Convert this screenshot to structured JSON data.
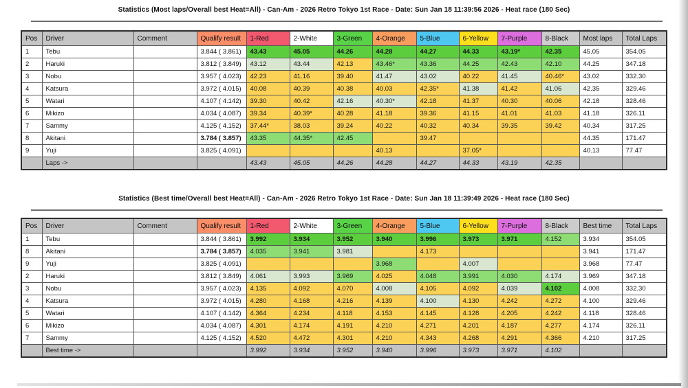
{
  "colors": {
    "header": {
      "gray": "#c5c5c5",
      "qualify": "#f98e69",
      "red": "#f2596e",
      "white": "#ffffff",
      "green": "#58d348",
      "orange": "#f99d5e",
      "blue": "#4fc8f1",
      "yellow": "#fedf1e",
      "purple": "#dd6ede",
      "black": "#cccccc"
    },
    "cell": {
      "g": "#5ccd3d",
      "m": "#8edc74",
      "p": "#d9e7d1",
      "y": "#fbd255",
      "w": "#ffffff"
    },
    "footer_bg": "#c3c3c3"
  },
  "tables": [
    {
      "title": "Statistics (Most laps/Overall best Heat=All) - Can-Am - 2026 Retro Tokyo 1st Race - Date: Sun Jan 18 11:39:56 2026 - Heat race (180 Sec)",
      "columns": [
        "Pos",
        "Driver",
        "Comment",
        "Qualify result",
        "1-Red",
        "2-White",
        "3-Green",
        "4-Orange",
        "5-Blue",
        "6-Yellow",
        "7-Purple",
        "8-Black",
        "Most laps",
        "Total Laps"
      ],
      "header_bg": [
        "gray",
        "gray",
        "gray",
        "qualify",
        "red",
        "white",
        "green",
        "orange",
        "blue",
        "yellow",
        "purple",
        "black",
        "gray",
        "gray"
      ],
      "rows": [
        {
          "pos": "1",
          "driver": "Tebu",
          "comment": "",
          "qualify": "3.844 ( 3.861)",
          "heats": [
            {
              "v": "43.43",
              "c": "g",
              "b": true
            },
            {
              "v": "45.05",
              "c": "g",
              "b": true
            },
            {
              "v": "44.26",
              "c": "g",
              "b": true
            },
            {
              "v": "44.28",
              "c": "g",
              "b": true
            },
            {
              "v": "44.27",
              "c": "g",
              "b": true
            },
            {
              "v": "44.33",
              "c": "g",
              "b": true
            },
            {
              "v": "43.19*",
              "c": "g",
              "b": true
            },
            {
              "v": "42.35",
              "c": "g",
              "b": true
            }
          ],
          "result": "45.05",
          "total": "354.05"
        },
        {
          "pos": "2",
          "driver": "Haruki",
          "comment": "",
          "qualify": "3.812 ( 3.849)",
          "heats": [
            {
              "v": "43.12",
              "c": "p"
            },
            {
              "v": "43.44",
              "c": "p"
            },
            {
              "v": "42.13",
              "c": "y"
            },
            {
              "v": "43.46*",
              "c": "m"
            },
            {
              "v": "43.36",
              "c": "m"
            },
            {
              "v": "44.25",
              "c": "m"
            },
            {
              "v": "42.43",
              "c": "m"
            },
            {
              "v": "42.10",
              "c": "m"
            }
          ],
          "result": "44.25",
          "total": "347.18"
        },
        {
          "pos": "3",
          "driver": "Nobu",
          "comment": "",
          "qualify": "3.957 ( 4.023)",
          "heats": [
            {
              "v": "42.23",
              "c": "y"
            },
            {
              "v": "41.16",
              "c": "y"
            },
            {
              "v": "39.40",
              "c": "y"
            },
            {
              "v": "41.47",
              "c": "p"
            },
            {
              "v": "43.02",
              "c": "p"
            },
            {
              "v": "40.22",
              "c": "y"
            },
            {
              "v": "41.45",
              "c": "p"
            },
            {
              "v": "40.46*",
              "c": "y"
            }
          ],
          "result": "43.02",
          "total": "332.30"
        },
        {
          "pos": "4",
          "driver": "Katsura",
          "comment": "",
          "qualify": "3.972 ( 4.015)",
          "heats": [
            {
              "v": "40.08",
              "c": "y"
            },
            {
              "v": "40.39",
              "c": "y"
            },
            {
              "v": "40.38",
              "c": "y"
            },
            {
              "v": "40.03",
              "c": "y"
            },
            {
              "v": "42.35*",
              "c": "y"
            },
            {
              "v": "41.38",
              "c": "p"
            },
            {
              "v": "41.42",
              "c": "y"
            },
            {
              "v": "41.06",
              "c": "p"
            }
          ],
          "result": "42.35",
          "total": "329.46"
        },
        {
          "pos": "5",
          "driver": "Watari",
          "comment": "",
          "qualify": "4.107 ( 4.142)",
          "heats": [
            {
              "v": "39.30",
              "c": "y"
            },
            {
              "v": "40.42",
              "c": "y"
            },
            {
              "v": "42.16",
              "c": "p"
            },
            {
              "v": "40.30*",
              "c": "p"
            },
            {
              "v": "42.18",
              "c": "y"
            },
            {
              "v": "41.37",
              "c": "y"
            },
            {
              "v": "40.30",
              "c": "y"
            },
            {
              "v": "40.06",
              "c": "y"
            }
          ],
          "result": "42.18",
          "total": "328.46"
        },
        {
          "pos": "6",
          "driver": "Mikizo",
          "comment": "",
          "qualify": "4.034 ( 4.087)",
          "heats": [
            {
              "v": "39.34",
              "c": "y"
            },
            {
              "v": "40.39*",
              "c": "y"
            },
            {
              "v": "40.28",
              "c": "y"
            },
            {
              "v": "41.18",
              "c": "y"
            },
            {
              "v": "39.36",
              "c": "y"
            },
            {
              "v": "41.15",
              "c": "y"
            },
            {
              "v": "41.01",
              "c": "y"
            },
            {
              "v": "41.03",
              "c": "y"
            }
          ],
          "result": "41.18",
          "total": "326.11"
        },
        {
          "pos": "7",
          "driver": "Sammy",
          "comment": "",
          "qualify": "4.125 ( 4.152)",
          "heats": [
            {
              "v": "37.44*",
              "c": "y"
            },
            {
              "v": "38.03",
              "c": "y"
            },
            {
              "v": "39.24",
              "c": "y"
            },
            {
              "v": "40.22",
              "c": "y"
            },
            {
              "v": "40.32",
              "c": "y"
            },
            {
              "v": "40.34",
              "c": "y"
            },
            {
              "v": "39.35",
              "c": "y"
            },
            {
              "v": "39.42",
              "c": "y"
            }
          ],
          "result": "40.34",
          "total": "317.25"
        },
        {
          "pos": "8",
          "driver": "Akitani",
          "comment": "",
          "qualify": "3.784 ( 3.857)",
          "qb": true,
          "heats": [
            {
              "v": "43.35",
              "c": "m"
            },
            {
              "v": "44.35*",
              "c": "m"
            },
            {
              "v": "42.45",
              "c": "m"
            },
            {
              "v": "",
              "c": "y"
            },
            {
              "v": "39.47",
              "c": "y"
            },
            {
              "v": "",
              "c": "y"
            },
            {
              "v": "",
              "c": "y"
            },
            {
              "v": "",
              "c": "y"
            }
          ],
          "result": "44.35",
          "total": "171.47"
        },
        {
          "pos": "9",
          "driver": "Yuji",
          "comment": "",
          "qualify": "3.825 ( 4.091)",
          "heats": [
            {
              "v": "",
              "c": "y"
            },
            {
              "v": "",
              "c": "y"
            },
            {
              "v": "",
              "c": "y"
            },
            {
              "v": "40.13",
              "c": "y"
            },
            {
              "v": "",
              "c": "y"
            },
            {
              "v": "37.05*",
              "c": "y"
            },
            {
              "v": "",
              "c": "y"
            },
            {
              "v": "",
              "c": "y"
            }
          ],
          "result": "40.13",
          "total": "77.47"
        }
      ],
      "footer": {
        "label": "Laps ->",
        "values": [
          "43.43",
          "45.05",
          "44.26",
          "44.28",
          "44.27",
          "44.33",
          "43.19",
          "42.35"
        ]
      }
    },
    {
      "title": "Statistics (Best time/Overall best Heat=All) - Can-Am - 2026 Retro Tokyo 1st Race - Date: Sun Jan 18 11:39:49 2026 - Heat race (180 Sec)",
      "columns": [
        "Pos",
        "Driver",
        "Comment",
        "Qualify result",
        "1-Red",
        "2-White",
        "3-Green",
        "4-Orange",
        "5-Blue",
        "6-Yellow",
        "7-Purple",
        "8-Black",
        "Best time",
        "Total Laps"
      ],
      "header_bg": [
        "gray",
        "gray",
        "gray",
        "qualify",
        "red",
        "white",
        "green",
        "orange",
        "blue",
        "yellow",
        "purple",
        "black",
        "gray",
        "gray"
      ],
      "rows": [
        {
          "pos": "1",
          "driver": "Tebu",
          "comment": "",
          "qualify": "3.844 ( 3.861)",
          "heats": [
            {
              "v": "3.992",
              "c": "g",
              "b": true
            },
            {
              "v": "3.934",
              "c": "g",
              "b": true
            },
            {
              "v": "3.952",
              "c": "g",
              "b": true
            },
            {
              "v": "3.940",
              "c": "g",
              "b": true
            },
            {
              "v": "3.996",
              "c": "g",
              "b": true
            },
            {
              "v": "3.973",
              "c": "g",
              "b": true
            },
            {
              "v": "3.971",
              "c": "g",
              "b": true
            },
            {
              "v": "4.152",
              "c": "m"
            }
          ],
          "result": "3.934",
          "total": "354.05"
        },
        {
          "pos": "8",
          "driver": "Akitani",
          "comment": "",
          "qualify": "3.784 ( 3.857)",
          "qb": true,
          "heats": [
            {
              "v": "4.035",
              "c": "m"
            },
            {
              "v": "3.941",
              "c": "m"
            },
            {
              "v": "3.981",
              "c": "p"
            },
            {
              "v": "",
              "c": "y"
            },
            {
              "v": "4.173",
              "c": "y"
            },
            {
              "v": "",
              "c": "y"
            },
            {
              "v": "",
              "c": "y"
            },
            {
              "v": "",
              "c": "y"
            }
          ],
          "result": "3.941",
          "total": "171.47"
        },
        {
          "pos": "9",
          "driver": "Yuji",
          "comment": "",
          "qualify": "3.825 ( 4.091)",
          "heats": [
            {
              "v": "",
              "c": "y"
            },
            {
              "v": "",
              "c": "y"
            },
            {
              "v": "",
              "c": "y"
            },
            {
              "v": "3.968",
              "c": "m"
            },
            {
              "v": "",
              "c": "y"
            },
            {
              "v": "4.007",
              "c": "p"
            },
            {
              "v": "",
              "c": "y"
            },
            {
              "v": "",
              "c": "y"
            }
          ],
          "result": "3.968",
          "total": "77.47"
        },
        {
          "pos": "2",
          "driver": "Haruki",
          "comment": "",
          "qualify": "3.812 ( 3.849)",
          "heats": [
            {
              "v": "4.061",
              "c": "p"
            },
            {
              "v": "3.993",
              "c": "p"
            },
            {
              "v": "3.969",
              "c": "m"
            },
            {
              "v": "4.025",
              "c": "y"
            },
            {
              "v": "4.048",
              "c": "m"
            },
            {
              "v": "3.991",
              "c": "m"
            },
            {
              "v": "4.030",
              "c": "m"
            },
            {
              "v": "4.174",
              "c": "p"
            }
          ],
          "result": "3.969",
          "total": "347.18"
        },
        {
          "pos": "3",
          "driver": "Nobu",
          "comment": "",
          "qualify": "3.957 ( 4.023)",
          "heats": [
            {
              "v": "4.135",
              "c": "y"
            },
            {
              "v": "4.092",
              "c": "y"
            },
            {
              "v": "4.070",
              "c": "y"
            },
            {
              "v": "4.008",
              "c": "p"
            },
            {
              "v": "4.105",
              "c": "y"
            },
            {
              "v": "4.092",
              "c": "y"
            },
            {
              "v": "4.039",
              "c": "p"
            },
            {
              "v": "4.102",
              "c": "g",
              "b": true
            }
          ],
          "result": "4.008",
          "total": "332.30"
        },
        {
          "pos": "4",
          "driver": "Katsura",
          "comment": "",
          "qualify": "3.972 ( 4.015)",
          "heats": [
            {
              "v": "4.280",
              "c": "y"
            },
            {
              "v": "4.168",
              "c": "y"
            },
            {
              "v": "4.216",
              "c": "y"
            },
            {
              "v": "4.139",
              "c": "y"
            },
            {
              "v": "4.100",
              "c": "p"
            },
            {
              "v": "4.130",
              "c": "y"
            },
            {
              "v": "4.242",
              "c": "y"
            },
            {
              "v": "4.272",
              "c": "y"
            }
          ],
          "result": "4.100",
          "total": "329.46"
        },
        {
          "pos": "5",
          "driver": "Watari",
          "comment": "",
          "qualify": "4.107 ( 4.142)",
          "heats": [
            {
              "v": "4.364",
              "c": "y"
            },
            {
              "v": "4.234",
              "c": "y"
            },
            {
              "v": "4.118",
              "c": "y"
            },
            {
              "v": "4.153",
              "c": "y"
            },
            {
              "v": "4.145",
              "c": "y"
            },
            {
              "v": "4.128",
              "c": "y"
            },
            {
              "v": "4.205",
              "c": "y"
            },
            {
              "v": "4.242",
              "c": "y"
            }
          ],
          "result": "4.118",
          "total": "328.46"
        },
        {
          "pos": "6",
          "driver": "Mikizo",
          "comment": "",
          "qualify": "4.034 ( 4.087)",
          "heats": [
            {
              "v": "4.301",
              "c": "y"
            },
            {
              "v": "4.174",
              "c": "y"
            },
            {
              "v": "4.191",
              "c": "y"
            },
            {
              "v": "4.210",
              "c": "y"
            },
            {
              "v": "4.271",
              "c": "y"
            },
            {
              "v": "4.201",
              "c": "y"
            },
            {
              "v": "4.187",
              "c": "y"
            },
            {
              "v": "4.277",
              "c": "y"
            }
          ],
          "result": "4.174",
          "total": "326.11"
        },
        {
          "pos": "7",
          "driver": "Sammy",
          "comment": "",
          "qualify": "4.125 ( 4.152)",
          "heats": [
            {
              "v": "4.520",
              "c": "y"
            },
            {
              "v": "4.472",
              "c": "y"
            },
            {
              "v": "4.301",
              "c": "y"
            },
            {
              "v": "4.210",
              "c": "y"
            },
            {
              "v": "4.343",
              "c": "y"
            },
            {
              "v": "4.268",
              "c": "y"
            },
            {
              "v": "4.291",
              "c": "y"
            },
            {
              "v": "4.366",
              "c": "y"
            }
          ],
          "result": "4.210",
          "total": "317.25"
        }
      ],
      "footer": {
        "label": "Best time ->",
        "values": [
          "3.992",
          "3.934",
          "3.952",
          "3.940",
          "3.996",
          "3.973",
          "3.971",
          "4.102"
        ]
      }
    }
  ]
}
